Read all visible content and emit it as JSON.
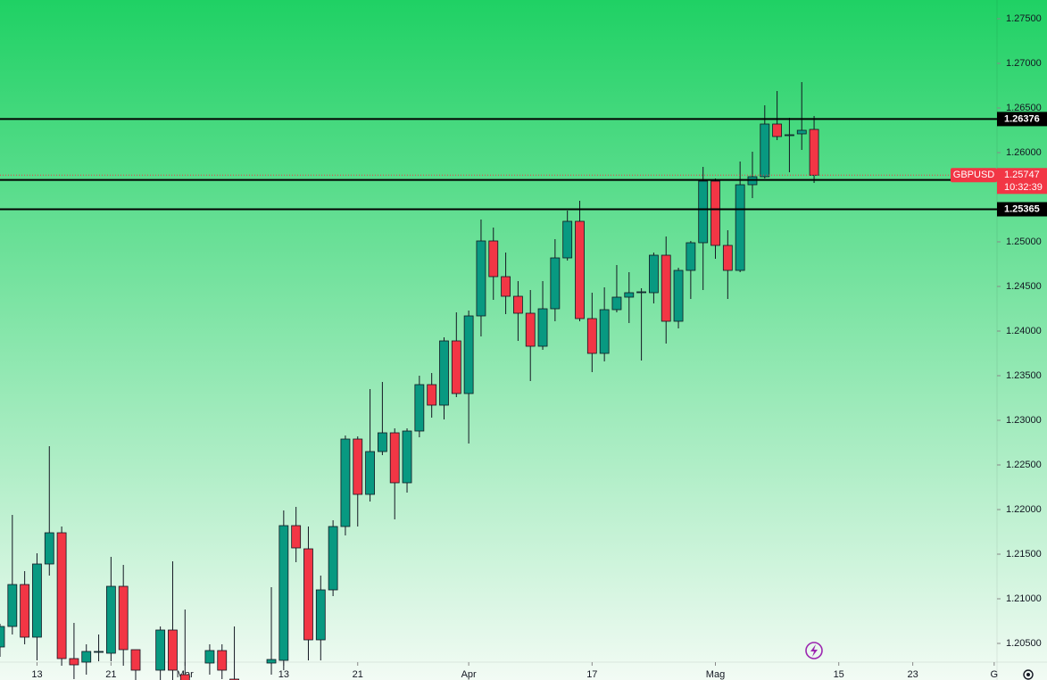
{
  "chart_data": {
    "type": "candlestick",
    "symbol": "GBPUSD",
    "countdown": "10:32:39",
    "last_price": 1.25747,
    "up_color": "#089981",
    "down_color": "#f23645",
    "hlines": [
      1.26376,
      1.25694,
      1.25365
    ],
    "xlim": [
      0,
      80.83
    ],
    "xticks": [
      {
        "value": 3,
        "label": "13"
      },
      {
        "value": 9,
        "label": "21"
      },
      {
        "value": 15,
        "label": "Mar"
      },
      {
        "value": 23,
        "label": "13"
      },
      {
        "value": 29,
        "label": "21"
      },
      {
        "value": 38,
        "label": "Apr"
      },
      {
        "value": 48,
        "label": "17"
      },
      {
        "value": 58,
        "label": "Mag"
      },
      {
        "value": 68,
        "label": "15"
      },
      {
        "value": 74,
        "label": "23"
      },
      {
        "value": 80.6,
        "label": "G"
      }
    ],
    "ylim": [
      1.2031,
      1.2771
    ],
    "yticks": [
      {
        "value": 1.275,
        "label": "1.27500"
      },
      {
        "value": 1.27,
        "label": "1.27000"
      },
      {
        "value": 1.265,
        "label": "1.26500"
      },
      {
        "value": 1.26,
        "label": "1.26000"
      },
      {
        "value": 1.25,
        "label": "1.25000"
      },
      {
        "value": 1.245,
        "label": "1.24500"
      },
      {
        "value": 1.24,
        "label": "1.24000"
      },
      {
        "value": 1.235,
        "label": "1.23500"
      },
      {
        "value": 1.23,
        "label": "1.23000"
      },
      {
        "value": 1.225,
        "label": "1.22500"
      },
      {
        "value": 1.22,
        "label": "1.22000"
      },
      {
        "value": 1.215,
        "label": "1.21500"
      },
      {
        "value": 1.21,
        "label": "1.21000"
      },
      {
        "value": 1.205,
        "label": "1.20500"
      }
    ],
    "candles": {
      "x": [
        0,
        1,
        2,
        3,
        4,
        5,
        6,
        7,
        8,
        9,
        10,
        11,
        13,
        14,
        15,
        17,
        18,
        19,
        22,
        23,
        24,
        25,
        26,
        27,
        28,
        29,
        30,
        31,
        32,
        33,
        34,
        35,
        36,
        37,
        38,
        39,
        40,
        41,
        42,
        43,
        44,
        45,
        46,
        47,
        48,
        49,
        50,
        51,
        52,
        53,
        54,
        55,
        56,
        57,
        58,
        59,
        60,
        61,
        62,
        63,
        64,
        65,
        66
      ],
      "open": [
        1.2046,
        1.2069,
        1.2116,
        1.2057,
        1.2139,
        1.2174,
        1.2033,
        1.2029,
        1.204,
        1.2039,
        1.2114,
        1.2043,
        1.202,
        1.2065,
        1.2015,
        1.2028,
        1.2042,
        1.201,
        1.2028,
        1.2031,
        1.2182,
        1.2156,
        1.2054,
        1.211,
        1.2181,
        1.2279,
        1.2217,
        1.2265,
        1.2286,
        1.223,
        1.2288,
        1.234,
        1.2317,
        1.2389,
        1.233,
        1.2417,
        1.2501,
        1.2461,
        1.2439,
        1.242,
        1.2383,
        1.2425,
        1.2482,
        1.2523,
        1.2414,
        1.2375,
        1.2424,
        1.2438,
        1.2443,
        1.2443,
        1.2485,
        1.2411,
        1.2468,
        1.2499,
        1.2568,
        1.2496,
        1.2468,
        1.2564,
        1.2573,
        1.2632,
        1.2619,
        1.2621,
        1.2626
      ],
      "high": [
        1.2072,
        1.2194,
        1.2131,
        1.2151,
        1.2271,
        1.2181,
        1.2073,
        1.2049,
        1.206,
        1.2147,
        1.2138,
        1.2043,
        1.2069,
        1.2142,
        1.2088,
        1.2049,
        1.2049,
        1.2069,
        1.2113,
        1.2199,
        1.2203,
        1.2181,
        1.2126,
        1.2188,
        1.2283,
        1.2282,
        1.2335,
        1.2343,
        1.2291,
        1.2291,
        1.235,
        1.2353,
        1.2393,
        1.2421,
        1.2423,
        1.2525,
        1.2516,
        1.2488,
        1.2456,
        1.2446,
        1.2456,
        1.2503,
        1.2535,
        1.2546,
        1.2443,
        1.2449,
        1.2474,
        1.2466,
        1.2448,
        1.2488,
        1.2506,
        1.2471,
        1.2501,
        1.2584,
        1.2571,
        1.2513,
        1.259,
        1.2601,
        1.2653,
        1.2669,
        1.2639,
        1.2679,
        1.2641
      ],
      "low": [
        1.2035,
        1.206,
        1.2049,
        1.2031,
        1.2126,
        1.2025,
        1.201,
        1.2015,
        1.203,
        1.203,
        1.2025,
        1.2005,
        1.2005,
        1.2005,
        1.1995,
        1.2015,
        1.201,
        1.199,
        1.2015,
        1.202,
        1.2141,
        1.2031,
        1.2031,
        1.2103,
        1.2171,
        1.2181,
        1.2209,
        1.2261,
        1.2189,
        1.2219,
        1.2281,
        1.2303,
        1.2301,
        1.2326,
        1.2274,
        1.2394,
        1.2435,
        1.2419,
        1.2389,
        1.2344,
        1.2379,
        1.2411,
        1.2479,
        1.2411,
        1.2354,
        1.2366,
        1.2421,
        1.2409,
        1.2367,
        1.2431,
        1.2386,
        1.2403,
        1.2436,
        1.2446,
        1.2481,
        1.2436,
        1.2466,
        1.2549,
        1.2571,
        1.2614,
        1.2578,
        1.2603,
        1.2566
      ],
      "close": [
        1.2069,
        1.2116,
        1.2057,
        1.2139,
        1.2174,
        1.2033,
        1.2026,
        1.2041,
        1.2041,
        1.2114,
        1.2043,
        1.202,
        1.2065,
        1.202,
        1.2005,
        1.2042,
        1.202,
        1.2,
        1.2032,
        1.2182,
        1.2157,
        1.2054,
        1.211,
        1.2181,
        1.2279,
        1.2217,
        1.2265,
        1.2286,
        1.223,
        1.2288,
        1.234,
        1.2317,
        1.2389,
        1.233,
        1.2417,
        1.2501,
        1.2461,
        1.2439,
        1.242,
        1.2383,
        1.2425,
        1.2482,
        1.2523,
        1.2414,
        1.2375,
        1.2424,
        1.2438,
        1.2443,
        1.2444,
        1.2485,
        1.2411,
        1.2468,
        1.2499,
        1.2568,
        1.2496,
        1.2468,
        1.2564,
        1.2573,
        1.2632,
        1.2618,
        1.262,
        1.2625,
        1.25747
      ]
    }
  }
}
